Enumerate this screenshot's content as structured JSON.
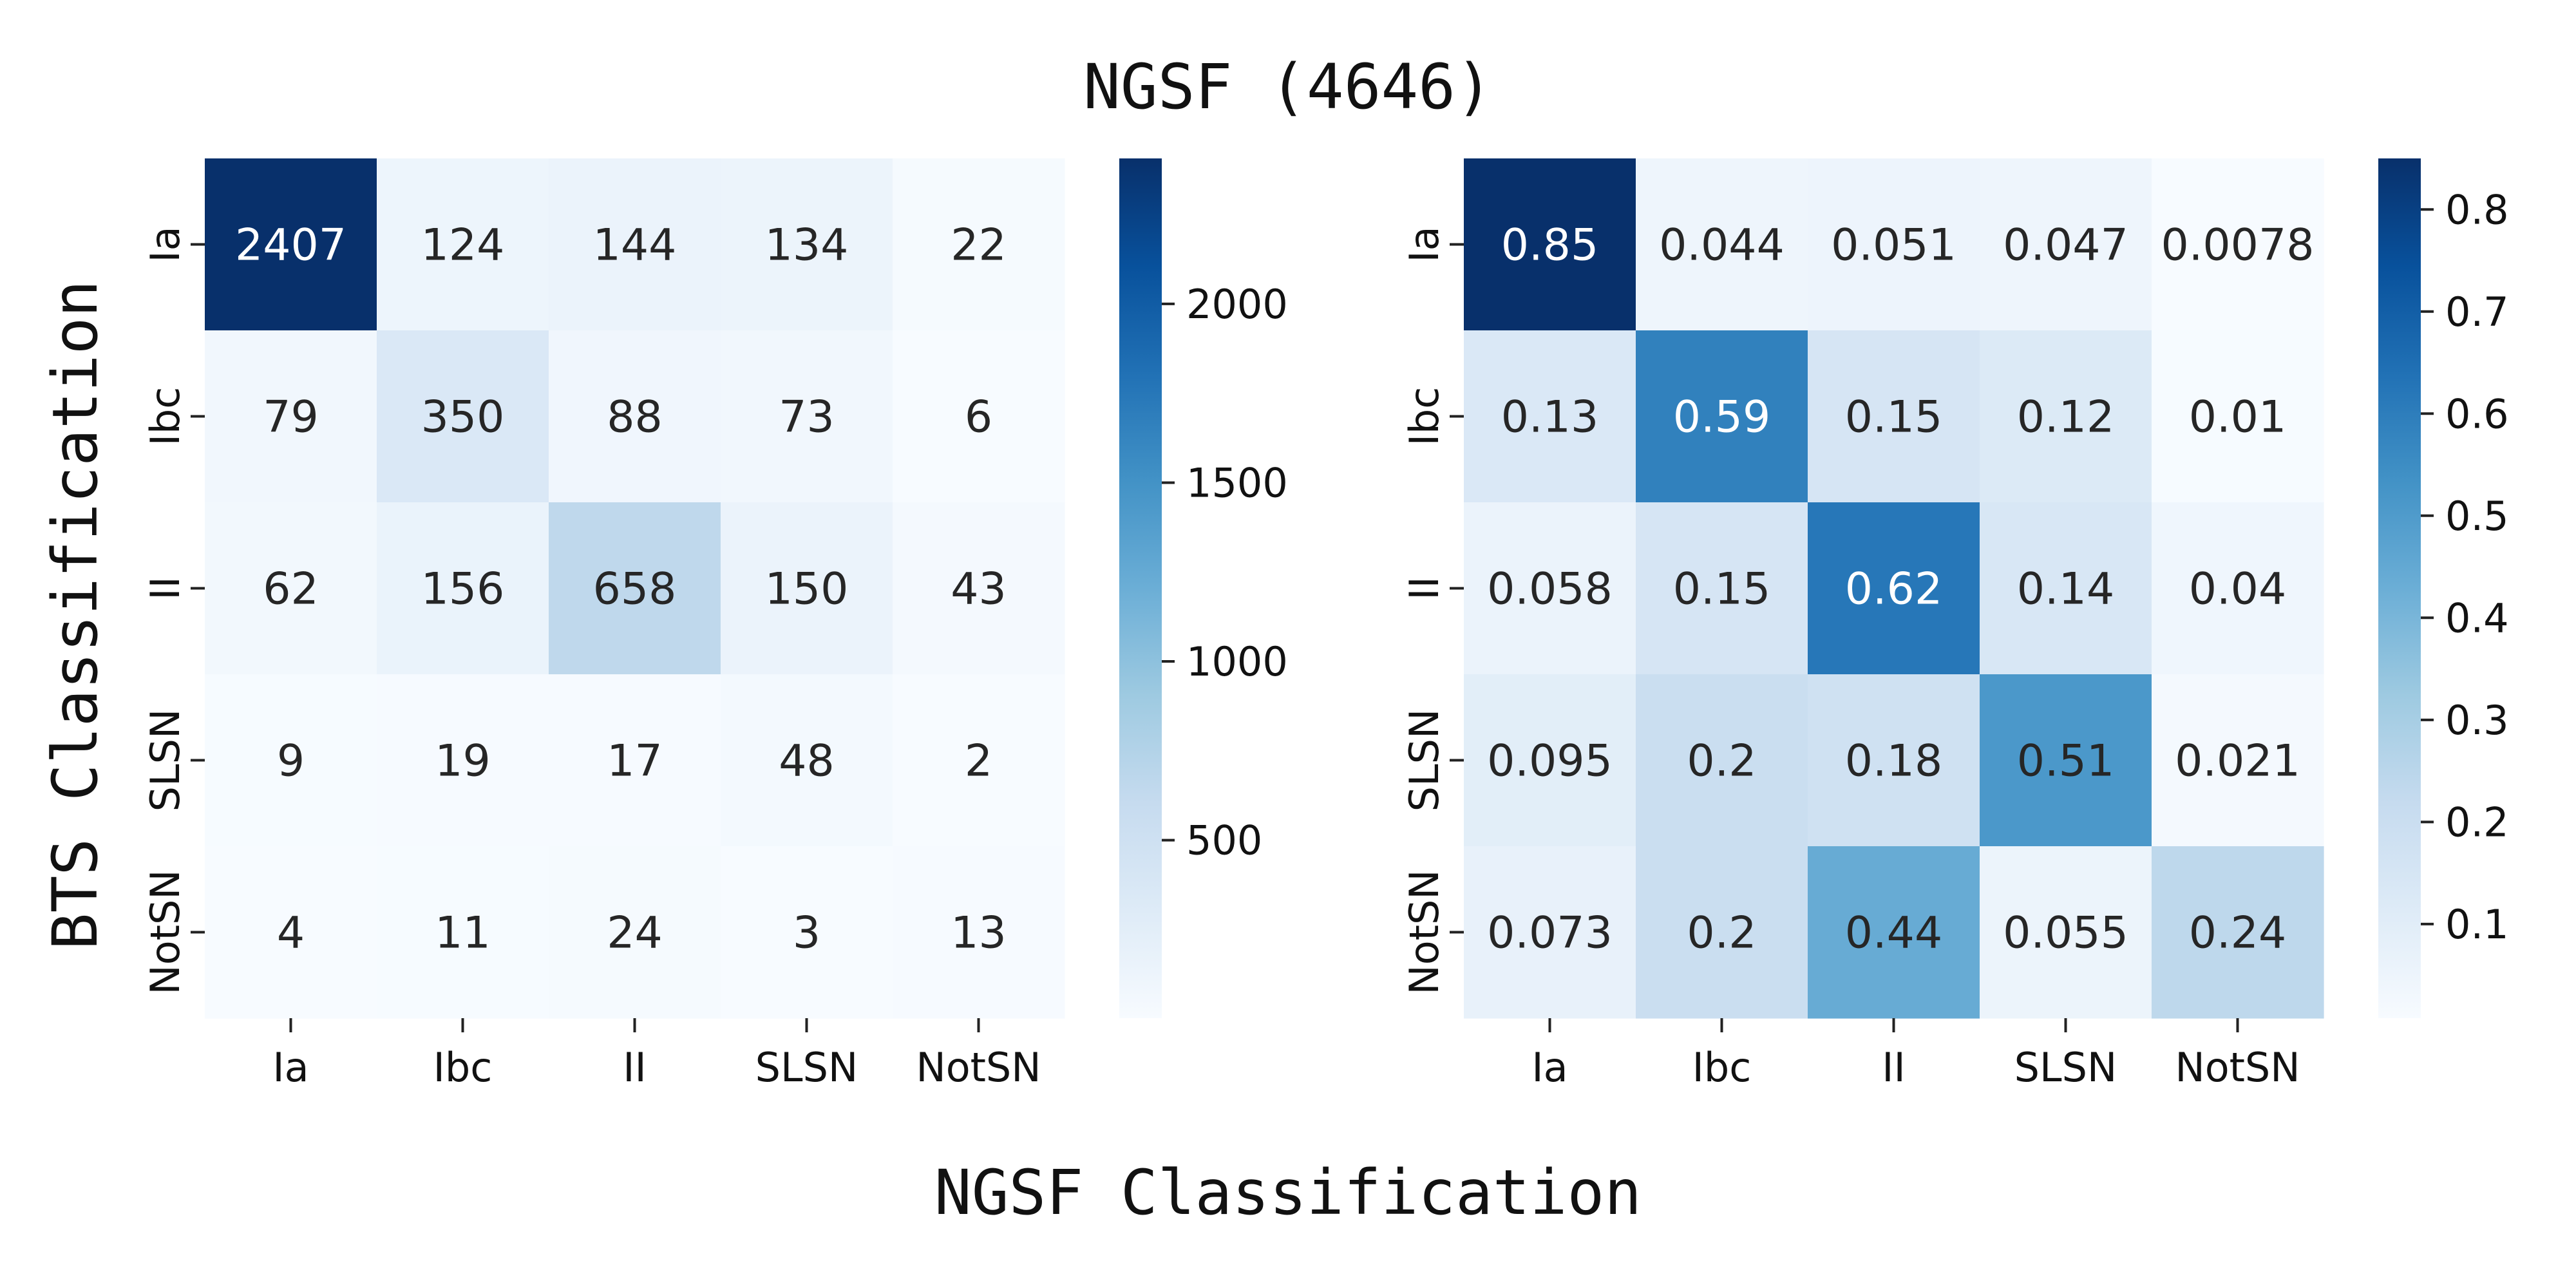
{
  "figure": {
    "title": "NGSF (4646)",
    "xlabel": "NGSF Classification",
    "ylabel": "BTS Classification"
  },
  "chart_data": [
    {
      "type": "heatmap",
      "title": "",
      "xlabel": "",
      "ylabel": "",
      "x_categories": [
        "Ia",
        "Ibc",
        "II",
        "SLSN",
        "NotSN"
      ],
      "y_categories": [
        "Ia",
        "Ibc",
        "II",
        "SLSN",
        "NotSN"
      ],
      "values": [
        [
          2407,
          124,
          144,
          134,
          22
        ],
        [
          79,
          350,
          88,
          73,
          6
        ],
        [
          62,
          156,
          658,
          150,
          43
        ],
        [
          9,
          19,
          17,
          48,
          2
        ],
        [
          4,
          11,
          24,
          3,
          13
        ]
      ],
      "labels": [
        [
          "2407",
          "124",
          "144",
          "134",
          "22"
        ],
        [
          "79",
          "350",
          "88",
          "73",
          "6"
        ],
        [
          "62",
          "156",
          "658",
          "150",
          "43"
        ],
        [
          "9",
          "19",
          "17",
          "48",
          "2"
        ],
        [
          "4",
          "11",
          "24",
          "3",
          "13"
        ]
      ],
      "colormap": "Blues",
      "vmin": 2,
      "vmax": 2407,
      "colorbar_ticks": [
        500,
        1000,
        1500,
        2000
      ],
      "colorbar_tick_labels": [
        "500",
        "1000",
        "1500",
        "2000"
      ]
    },
    {
      "type": "heatmap",
      "title": "",
      "xlabel": "",
      "ylabel": "",
      "x_categories": [
        "Ia",
        "Ibc",
        "II",
        "SLSN",
        "NotSN"
      ],
      "y_categories": [
        "Ia",
        "Ibc",
        "II",
        "SLSN",
        "NotSN"
      ],
      "values": [
        [
          0.85,
          0.044,
          0.051,
          0.047,
          0.0078
        ],
        [
          0.13,
          0.59,
          0.15,
          0.12,
          0.01
        ],
        [
          0.058,
          0.15,
          0.62,
          0.14,
          0.04
        ],
        [
          0.095,
          0.2,
          0.18,
          0.51,
          0.021
        ],
        [
          0.073,
          0.2,
          0.44,
          0.055,
          0.24
        ]
      ],
      "labels": [
        [
          "0.85",
          "0.044",
          "0.051",
          "0.047",
          "0.0078"
        ],
        [
          "0.13",
          "0.59",
          "0.15",
          "0.12",
          "0.01"
        ],
        [
          "0.058",
          "0.15",
          "0.62",
          "0.14",
          "0.04"
        ],
        [
          "0.095",
          "0.2",
          "0.18",
          "0.51",
          "0.021"
        ],
        [
          "0.073",
          "0.2",
          "0.44",
          "0.055",
          "0.24"
        ]
      ],
      "colormap": "Blues",
      "vmin": 0.0078,
      "vmax": 0.85,
      "colorbar_ticks": [
        0.1,
        0.2,
        0.3,
        0.4,
        0.5,
        0.6,
        0.7,
        0.8
      ],
      "colorbar_tick_labels": [
        "0.1",
        "0.2",
        "0.3",
        "0.4",
        "0.5",
        "0.6",
        "0.7",
        "0.8"
      ]
    }
  ]
}
